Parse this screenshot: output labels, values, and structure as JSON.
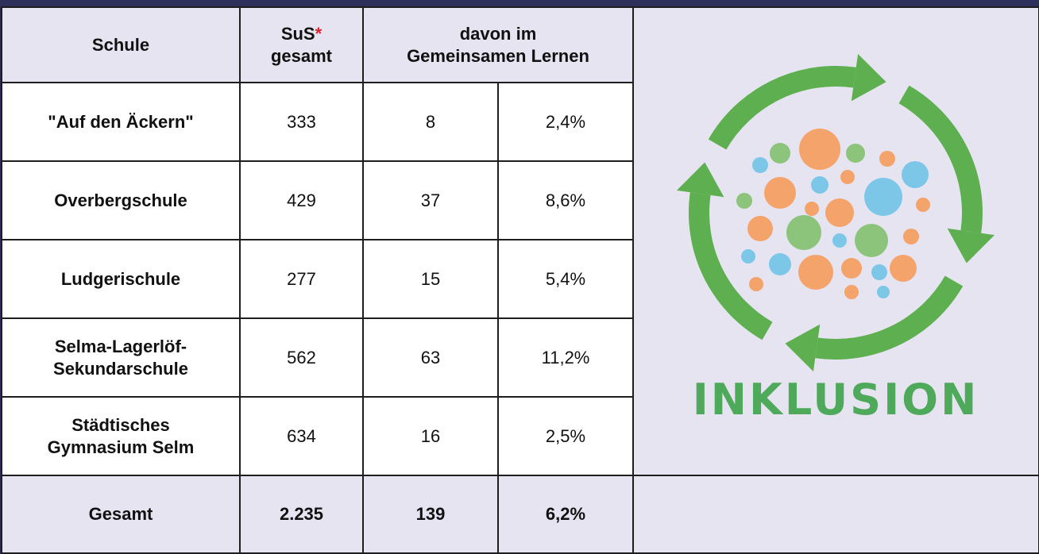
{
  "header": {
    "school": "Schule",
    "total": "SuS",
    "total_mark": "*",
    "total_sub": "gesamt",
    "gl_line1": "davon im",
    "gl_line2": "Gemeinsamen Lernen"
  },
  "rows": [
    {
      "school": [
        "\"Auf den Äckern\""
      ],
      "total": "333",
      "gl": "8",
      "share": "2,4%"
    },
    {
      "school": [
        "Overbergschule"
      ],
      "total": "429",
      "gl": "37",
      "share": "8,6%"
    },
    {
      "school": [
        "Ludgerischule"
      ],
      "total": "277",
      "gl": "15",
      "share": "5,4%"
    },
    {
      "school": [
        "Selma-Lagerlöf-",
        "Sekundarschule"
      ],
      "total": "562",
      "gl": "63",
      "share": "11,2%"
    },
    {
      "school": [
        "Städtisches",
        "Gymnasium Selm"
      ],
      "total": "634",
      "gl": "16",
      "share": "2,5%"
    }
  ],
  "summary": {
    "school": "Gesamt",
    "total": "2.235",
    "gl": "139",
    "share": "6,2%"
  },
  "logo": {
    "text": "INKLUSION"
  }
}
